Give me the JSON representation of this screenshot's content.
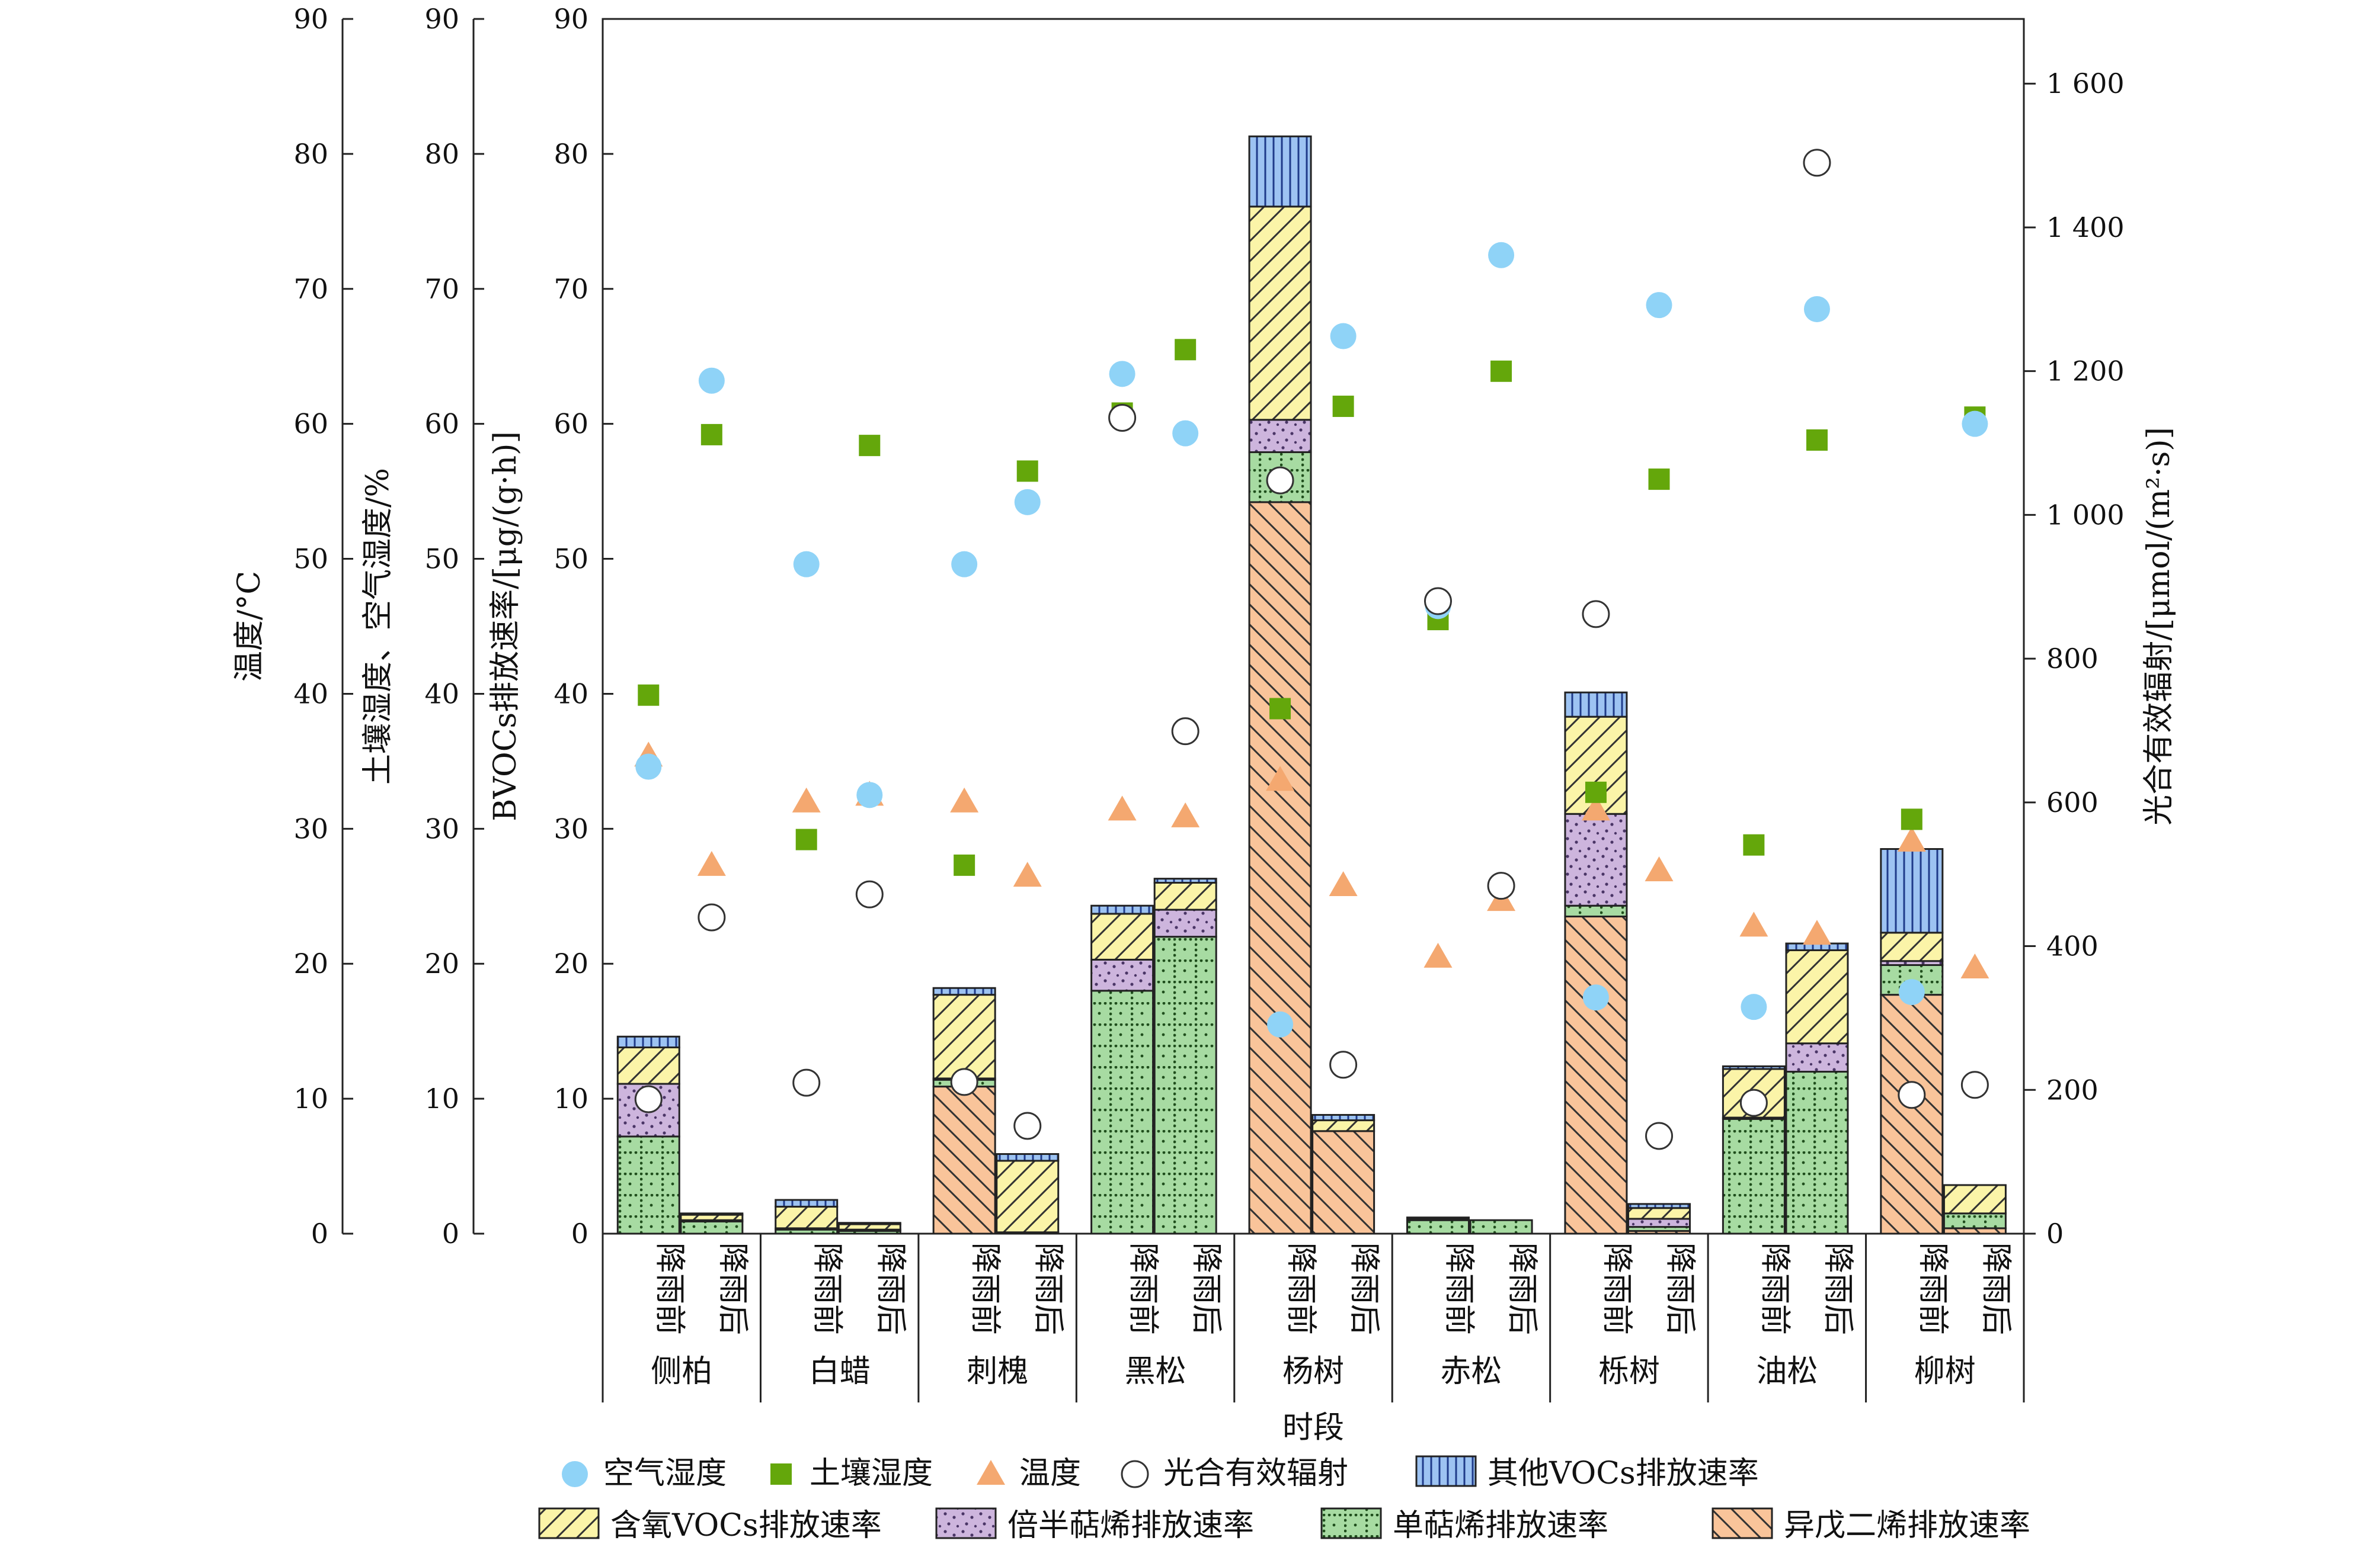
{
  "chart_data": {
    "type": "bar",
    "xlabel": "时段",
    "categories": [
      "侧柏",
      "白蜡",
      "刺槐",
      "黑松",
      "杨树",
      "赤松",
      "栎树",
      "油松",
      "柳树"
    ],
    "periods": [
      "降雨前",
      "降雨后"
    ],
    "y_left_axes": [
      {
        "label": "温度/°C",
        "ylim": [
          0,
          90
        ],
        "ticks": [
          "0",
          "10",
          "20",
          "30",
          "40",
          "50",
          "60",
          "70",
          "80",
          "90"
        ]
      },
      {
        "label": "土壤湿度、空气湿度/%",
        "ylim": [
          0,
          90
        ],
        "ticks": [
          "0",
          "10",
          "20",
          "30",
          "40",
          "50",
          "60",
          "70",
          "80",
          "90"
        ]
      },
      {
        "label": "BVOCs排放速率/[μg/(g·h)]",
        "ylim": [
          0,
          90
        ],
        "ticks": [
          "0",
          "10",
          "20",
          "30",
          "40",
          "50",
          "60",
          "70",
          "80",
          "90"
        ]
      }
    ],
    "y_right_axis": {
      "label": "光合有效辐射/[μmol/(m²·s)]",
      "ylim": [
        0,
        1690
      ],
      "ticks": [
        "0",
        "200",
        "400",
        "600",
        "800",
        "1 000",
        "1 200",
        "1 400",
        "1 600"
      ]
    },
    "stack_series": [
      {
        "name": "异戊二烯排放速率",
        "color": "#f9c49a",
        "pattern": "diag-back",
        "values": [
          0,
          0,
          0,
          0,
          10.9,
          0,
          0,
          0,
          54.2,
          7.6,
          0,
          0,
          23.5,
          0.2,
          0,
          0,
          17.7,
          0.4
        ]
      },
      {
        "name": "单萜烯排放速率",
        "color": "#a7dba2",
        "pattern": "grid-dots",
        "values": [
          7.2,
          0.9,
          0.3,
          0.2,
          0.5,
          0.1,
          18.0,
          22.0,
          3.7,
          0,
          1.0,
          1.0,
          0.8,
          0.3,
          8.5,
          12.0,
          2.2,
          1.1
        ]
      },
      {
        "name": "倍半萜烯排放速率",
        "color": "#cdb5dd",
        "pattern": "dots",
        "values": [
          3.9,
          0.1,
          0.1,
          0.1,
          0.1,
          0,
          2.3,
          2.0,
          2.4,
          0,
          0,
          0,
          6.8,
          0.6,
          0.1,
          2.1,
          0.3,
          0
        ]
      },
      {
        "name": "含氧VOCs排放速率",
        "color": "#fbf4a8",
        "pattern": "diag-fwd",
        "values": [
          2.7,
          0.4,
          1.6,
          0.4,
          6.2,
          5.3,
          3.4,
          2.0,
          15.8,
          0.8,
          0.1,
          0,
          7.2,
          0.8,
          3.6,
          6.9,
          2.1,
          2.1
        ]
      },
      {
        "name": "其他VOCs排放速率",
        "color": "#9dc3f2",
        "pattern": "vlines",
        "values": [
          0.8,
          0.1,
          0.5,
          0.1,
          0.5,
          0.5,
          0.6,
          0.3,
          5.2,
          0.4,
          0.1,
          0,
          1.8,
          0.3,
          0.2,
          0.5,
          6.2,
          0
        ]
      }
    ],
    "scatter_series": [
      {
        "name": "空气湿度",
        "marker": "circle-filled",
        "color": "#8fd3f7",
        "axis": "left",
        "values": [
          34.6,
          63.2,
          49.6,
          32.5,
          49.6,
          54.2,
          63.7,
          59.3,
          15.5,
          66.5,
          46.5,
          72.5,
          17.5,
          68.8,
          16.8,
          68.5,
          17.9,
          60.0
        ]
      },
      {
        "name": "土壤湿度",
        "marker": "square",
        "color": "#64a70b",
        "axis": "left",
        "values": [
          39.9,
          59.2,
          29.2,
          58.4,
          27.3,
          56.5,
          60.8,
          65.5,
          38.9,
          61.3,
          45.5,
          63.9,
          32.7,
          55.9,
          28.8,
          58.8,
          30.7,
          60.5
        ]
      },
      {
        "name": "温度",
        "marker": "triangle",
        "color": "#f4a870",
        "axis": "left",
        "values": [
          35.4,
          27.3,
          32.0,
          32.5,
          32.0,
          26.5,
          31.4,
          30.9,
          33.6,
          25.8,
          20.5,
          24.7,
          31.4,
          26.9,
          22.8,
          22.2,
          29.1,
          19.7
        ]
      },
      {
        "name": "光合有效辐射",
        "marker": "circle-open",
        "color": "#ffffff",
        "axis": "right",
        "values": [
          187,
          440,
          210,
          472,
          211,
          150,
          1135,
          699,
          1048,
          235,
          880,
          484,
          862,
          136,
          182,
          1490,
          193,
          207
        ]
      }
    ],
    "legend": [
      "空气湿度",
      "土壤湿度",
      "温度",
      "光合有效辐射",
      "其他VOCs排放速率",
      "含氧VOCs排放速率",
      "倍半萜烯排放速率",
      "单萜烯排放速率",
      "异戊二烯排放速率"
    ],
    "legend_position": "bottom",
    "grid": false
  }
}
